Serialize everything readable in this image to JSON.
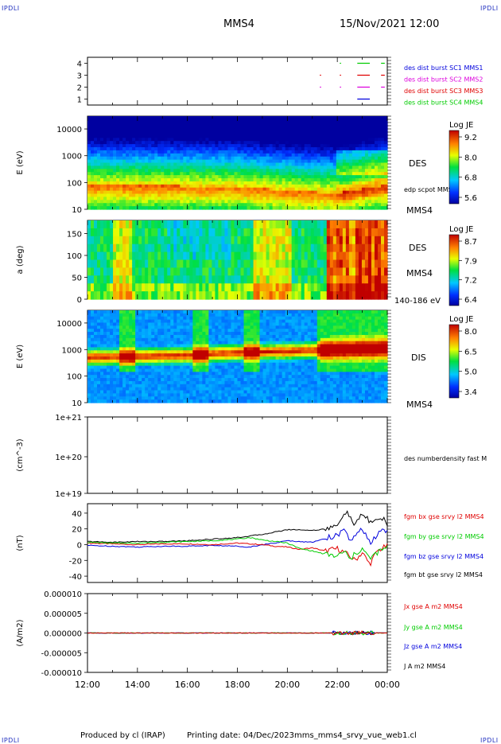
{
  "header": {
    "corner_label": "IPDLI",
    "spacecraft": "MMS4",
    "datetime": "15/Nov/2021 12:00"
  },
  "footer": {
    "produced_by": "Produced by cl (IRAP)",
    "printing_date": "Printing date: 04/Dec/2023",
    "filename": "mms_mms4_srvy_vue_web1.cl"
  },
  "colors": {
    "spec_low": "#0a0aa8",
    "spec_high": "#d00000",
    "red": "#e00000",
    "green": "#00cc00",
    "blue": "#0000dd",
    "magenta": "#dd00dd",
    "black": "#000000"
  },
  "time_axis": {
    "ticks": [
      "12:00",
      "14:00",
      "16:00",
      "18:00",
      "20:00",
      "22:00",
      "00:00"
    ],
    "range_hours": [
      12,
      24
    ]
  },
  "chart_data": [
    {
      "type": "line",
      "panel": "burst",
      "yticks": [
        "1",
        "2",
        "3",
        "4"
      ],
      "ylim": [
        0.5,
        4.5
      ],
      "ylabel": "",
      "legend": [
        {
          "label": "des dist burst SC1 MMS1",
          "color": "#0000dd",
          "level": 4
        },
        {
          "label": "des dist burst SC2 MMS2",
          "color": "#dd00dd",
          "level": 3
        },
        {
          "label": "des dist burst SC3 MMS3",
          "color": "#e00000",
          "level": 2
        },
        {
          "label": "des dist burst SC4 MMS4",
          "color": "#00cc00",
          "level": 1
        }
      ],
      "intervals": [
        {
          "level": 4,
          "color": "#00cc00",
          "segments": [
            [
              22.1,
              22.15
            ],
            [
              22.8,
              23.3
            ],
            [
              23.75,
              23.9
            ]
          ]
        },
        {
          "level": 3,
          "color": "#e00000",
          "segments": [
            [
              21.3,
              21.35
            ],
            [
              22.1,
              22.15
            ],
            [
              22.8,
              23.3
            ],
            [
              23.75,
              23.9
            ]
          ]
        },
        {
          "level": 2,
          "color": "#dd00dd",
          "segments": [
            [
              21.3,
              21.35
            ],
            [
              22.1,
              22.15
            ],
            [
              22.8,
              23.3
            ],
            [
              23.75,
              23.9
            ]
          ]
        },
        {
          "level": 1,
          "color": "#0000dd",
          "segments": [
            [
              22.8,
              23.3
            ]
          ]
        }
      ]
    },
    {
      "type": "heatmap",
      "panel": "des_energy",
      "ylabel": "E (eV)",
      "scale": "log",
      "ylim": [
        10,
        30000
      ],
      "yticks": [
        "10",
        "100",
        "1000",
        "10000"
      ],
      "right_labels": [
        "DES",
        "edp scpot MMS4",
        "MMS4"
      ],
      "colorbar": {
        "title": "Log JE",
        "ticks": [
          "9.2",
          "8.0",
          "6.8",
          "5.6"
        ],
        "range": [
          5.6,
          9.2
        ]
      },
      "profile_peak_log_e": [
        1.9,
        1.85,
        1.7,
        1.6,
        1.9
      ],
      "profile_peak_times": [
        12,
        18,
        20,
        22,
        24
      ]
    },
    {
      "type": "heatmap",
      "panel": "des_pitch",
      "ylabel": "a (deg)",
      "ylim": [
        0,
        180
      ],
      "yticks": [
        "0",
        "50",
        "100",
        "150"
      ],
      "right_labels": [
        "DES",
        "MMS4",
        "140-186 eV"
      ],
      "colorbar": {
        "title": "Log JE",
        "ticks": [
          "8.7",
          "7.9",
          "7.2",
          "6.4"
        ],
        "range": [
          6.4,
          8.7
        ]
      }
    },
    {
      "type": "heatmap",
      "panel": "dis_energy",
      "ylabel": "E (eV)",
      "scale": "log",
      "ylim": [
        10,
        30000
      ],
      "yticks": [
        "10",
        "100",
        "1000",
        "10000"
      ],
      "right_labels": [
        "DIS",
        "MMS4"
      ],
      "colorbar": {
        "title": "Log JE",
        "ticks": [
          "8.0",
          "6.5",
          "5.0",
          "3.4"
        ],
        "range": [
          3.4,
          8.0
        ]
      },
      "beam_energy_times": [
        12,
        16,
        18,
        20,
        22,
        24
      ],
      "beam_energy_ev": [
        500,
        600,
        750,
        850,
        1000,
        1100
      ]
    },
    {
      "type": "line",
      "panel": "density",
      "ylabel": "(cm^-3)",
      "scale": "log",
      "yticks": [
        "1e+19",
        "1e+20",
        "1e+21"
      ],
      "right_labels": [
        "des numberdensity fast M"
      ],
      "series": []
    },
    {
      "type": "line",
      "panel": "fgm",
      "ylabel": "(nT)",
      "ylim": [
        -48,
        52
      ],
      "yticks": [
        "-40",
        "-20",
        "0",
        "20",
        "40"
      ],
      "x": [
        12,
        13,
        14,
        15,
        16,
        17,
        18,
        18.5,
        19,
        19.5,
        20,
        20.5,
        21,
        21.5,
        22,
        22.3,
        22.5,
        22.7,
        23,
        23.3,
        23.6,
        23.9,
        24
      ],
      "series": [
        {
          "name": "fgm bx gse srvy l2 MMS4",
          "color": "#e00000",
          "values": [
            2,
            1,
            0,
            1,
            1,
            0,
            2,
            1,
            0,
            -2,
            -3,
            -6,
            -4,
            -8,
            -5,
            -10,
            -15,
            -20,
            -10,
            -25,
            -8,
            -3,
            -2
          ]
        },
        {
          "name": "fgm by gse srvy l2 MMS4",
          "color": "#00cc00",
          "values": [
            3,
            2,
            2,
            3,
            4,
            5,
            7,
            9,
            6,
            4,
            2,
            -5,
            -8,
            -12,
            -15,
            -8,
            -20,
            -12,
            -5,
            -18,
            -10,
            -5,
            -4
          ]
        },
        {
          "name": "fgm bz gse srvy l2 MMS4",
          "color": "#0000dd",
          "values": [
            -1,
            -2,
            -3,
            -2,
            -2,
            -1,
            -2,
            -3,
            0,
            2,
            5,
            4,
            3,
            8,
            12,
            18,
            5,
            10,
            20,
            2,
            12,
            20,
            15
          ]
        },
        {
          "name": "fgm bt gse srvy l2 MMS4",
          "color": "#000000",
          "values": [
            4,
            3,
            4,
            4,
            5,
            7,
            9,
            11,
            13,
            16,
            19,
            19,
            18,
            20,
            23,
            43,
            35,
            25,
            38,
            30,
            30,
            35,
            22
          ]
        }
      ]
    },
    {
      "type": "line",
      "panel": "current",
      "ylabel": "(A/m2)",
      "ylim": [
        -1e-05,
        1e-05
      ],
      "yticks": [
        "-0.000010",
        "-0.000005",
        "0.000000",
        "0.000005",
        "0.000010"
      ],
      "series": [
        {
          "name": "Jx gse A m2 MMS4",
          "color": "#e00000"
        },
        {
          "name": "Jy gse A m2 MMS4",
          "color": "#00cc00"
        },
        {
          "name": "Jz gse A m2 MMS4",
          "color": "#0000dd"
        },
        {
          "name": "J A m2 MMS4",
          "color": "#000000"
        }
      ]
    }
  ]
}
